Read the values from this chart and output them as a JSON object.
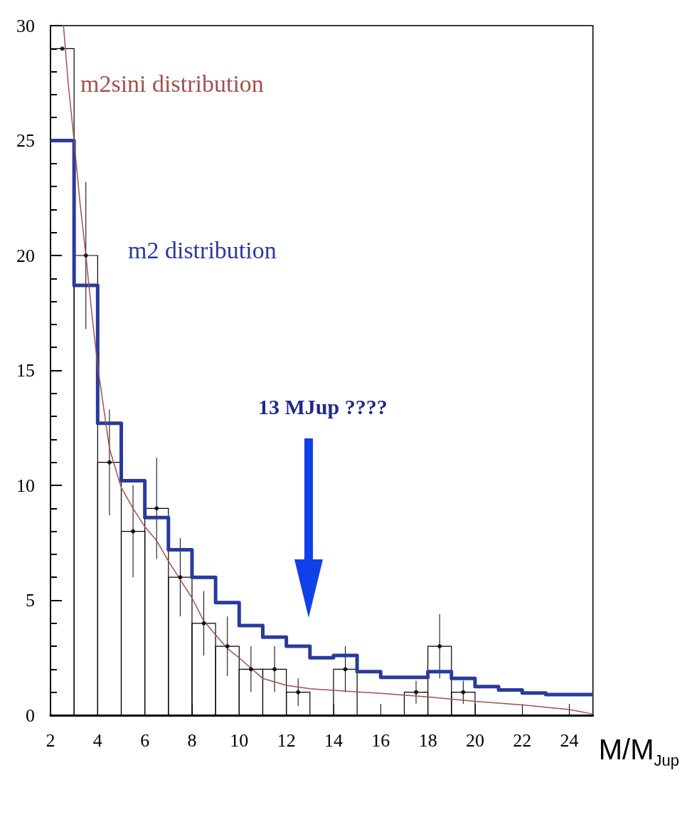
{
  "chart_data": {
    "type": "histogram",
    "xlabel": "M/M$_{Jup}$",
    "bins": [
      2,
      3,
      4,
      5,
      6,
      7,
      8,
      9,
      10,
      11,
      12,
      13,
      14,
      15,
      16,
      17,
      18,
      19,
      20,
      21,
      22,
      23,
      24,
      25
    ],
    "series": [
      {
        "color": "#000000",
        "values": [
          29,
          20,
          11,
          8,
          9,
          6,
          4,
          3,
          2,
          2,
          1,
          0,
          2,
          0,
          0,
          1,
          3,
          1,
          0,
          0,
          0,
          0,
          0
        ]
      },
      {
        "type": "scatter",
        "color": "#000000",
        "marker": "circle",
        "x": [
          2.5,
          3.5,
          4.5,
          5.5,
          6.5,
          7.5,
          8.5,
          9.5,
          10.5,
          11.5,
          12.5,
          14.5,
          17.5,
          18.5,
          19.5
        ],
        "values": [
          29,
          20,
          11,
          8,
          9,
          6,
          4,
          3,
          2,
          2,
          1,
          2,
          1,
          3,
          1
        ],
        "errors": [
          null,
          3.2,
          2.3,
          2,
          2.2,
          1.7,
          1.4,
          1.3,
          1,
          1,
          0.6,
          1,
          0.5,
          1.4,
          0.5
        ]
      },
      {
        "type": "step",
        "name": "m2 distribution",
        "color": "#2a3a9c",
        "x": [
          2,
          3,
          4,
          5,
          6,
          7,
          8,
          9,
          10,
          11,
          12,
          13,
          14,
          15,
          16,
          17,
          18,
          19,
          20,
          21,
          22,
          23,
          24,
          25
        ],
        "values": [
          25,
          18.7,
          12.7,
          10.2,
          8.6,
          7.2,
          6,
          4.9,
          3.9,
          3.4,
          3,
          2.5,
          2.6,
          1.9,
          1.65,
          1.65,
          1.9,
          1.6,
          1.25,
          1.1,
          0.97,
          0.9,
          0.9,
          0.9
        ]
      },
      {
        "type": "line",
        "name": "m2sini distribution",
        "color": "#a4504c",
        "x": [
          2.55,
          2.75,
          3,
          3.25,
          3.5,
          3.75,
          4,
          4.5,
          5,
          5.5,
          6,
          6.5,
          7,
          7.5,
          8,
          8.5,
          9,
          9.5,
          10,
          11,
          12,
          13,
          16,
          18,
          20,
          22,
          24,
          25
        ],
        "values": [
          30,
          27.5,
          25,
          22.3,
          20,
          17.5,
          15.2,
          11.6,
          9.9,
          9,
          8.2,
          7.6,
          6.7,
          5.9,
          5.1,
          4.1,
          3.5,
          2.9,
          2.5,
          1.6,
          1.3,
          1.15,
          0.95,
          0.8,
          0.6,
          0.45,
          0.25,
          0.05
        ]
      }
    ],
    "annotations": [
      "13 MJup ????"
    ],
    "xlim": [
      2,
      25
    ],
    "xticks": [
      2,
      4,
      6,
      8,
      10,
      12,
      14,
      16,
      18,
      20,
      22,
      24
    ],
    "ylim": [
      0,
      30
    ],
    "yticks": [
      0,
      5,
      10,
      15,
      20,
      25,
      30
    ],
    "grid": false
  }
}
